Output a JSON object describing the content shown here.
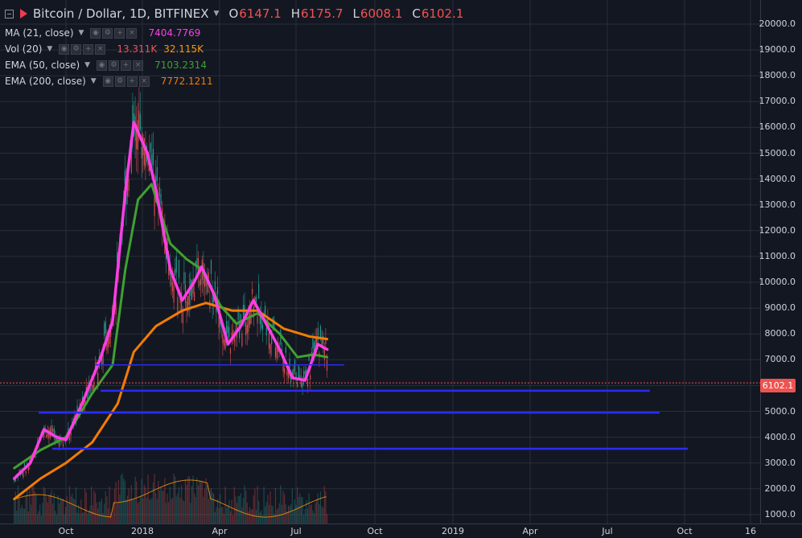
{
  "legend": {
    "symbol_title": "Bitcoin / Dollar, 1D, BITFINEX",
    "ohlc": [
      {
        "label": "O",
        "value": "6147.1"
      },
      {
        "label": "H",
        "value": "6175.7"
      },
      {
        "label": "L",
        "value": "6008.1"
      },
      {
        "label": "C",
        "value": "6102.1"
      }
    ],
    "indicators": [
      {
        "name": "MA (21, close)",
        "value": "7404.7769",
        "color": "#ff3ee6"
      },
      {
        "name": "Vol (20)",
        "value": "13.311K",
        "value2": "32.115K",
        "color": "#ef5350",
        "color2": "#ff9800"
      },
      {
        "name": "EMA (50, close)",
        "value": "7103.2314",
        "color": "#3fa130"
      },
      {
        "name": "EMA (200, close)",
        "value": "7772.1211",
        "color": "#f57c00"
      }
    ]
  },
  "price_axis": {
    "labels": [
      "20000.0",
      "19000.0",
      "18000.0",
      "17000.0",
      "16000.0",
      "15000.0",
      "14000.0",
      "13000.0",
      "12000.0",
      "11000.0",
      "10000.0",
      "9000.0",
      "8000.0",
      "7000.0",
      "6000.0",
      "5000.0",
      "4000.0",
      "3000.0",
      "2000.0",
      "1000.0"
    ],
    "last_price": "6102.1"
  },
  "time_axis": {
    "labels": [
      "Oct",
      "2018",
      "Apr",
      "Jul",
      "Oct",
      "2019",
      "Apr",
      "Jul",
      "Oct",
      "16"
    ]
  },
  "colors": {
    "background": "#131722",
    "grid": "#2a2e39",
    "candle_up": "#26a69a",
    "candle_down": "#ef5350",
    "ma21": "#ff3ee6",
    "ema50": "#3fa130",
    "ema200": "#f57c00",
    "support_lines": "#2a2cf0",
    "last_price": "#ef5350"
  },
  "chart_data": {
    "type": "line",
    "title": "Bitcoin / Dollar, 1D, BITFINEX",
    "ylim": [
      800,
      20700
    ],
    "y_scale": "linear",
    "grid": true,
    "support_levels": [
      6800,
      5800,
      4950,
      3550
    ],
    "series": [
      {
        "name": "MA (21, close)",
        "points": [
          [
            "2017-08-01",
            2400
          ],
          [
            "2017-08-20",
            3000
          ],
          [
            "2017-09-05",
            4300
          ],
          [
            "2017-09-20",
            4000
          ],
          [
            "2017-10-01",
            3900
          ],
          [
            "2017-10-20",
            5300
          ],
          [
            "2017-11-10",
            7000
          ],
          [
            "2017-11-25",
            8500
          ],
          [
            "2017-12-10",
            13500
          ],
          [
            "2017-12-20",
            16200
          ],
          [
            "2018-01-05",
            15000
          ],
          [
            "2018-01-15",
            13600
          ],
          [
            "2018-02-01",
            10500
          ],
          [
            "2018-02-15",
            9300
          ],
          [
            "2018-03-01",
            10000
          ],
          [
            "2018-03-10",
            10600
          ],
          [
            "2018-03-25",
            9500
          ],
          [
            "2018-04-10",
            7600
          ],
          [
            "2018-04-25",
            8300
          ],
          [
            "2018-05-10",
            9300
          ],
          [
            "2018-05-25",
            8400
          ],
          [
            "2018-06-10",
            7400
          ],
          [
            "2018-06-25",
            6300
          ],
          [
            "2018-07-10",
            6200
          ],
          [
            "2018-07-25",
            7600
          ],
          [
            "2018-08-05",
            7400
          ]
        ]
      },
      {
        "name": "EMA (50, close)",
        "points": [
          [
            "2017-08-01",
            2800
          ],
          [
            "2017-09-01",
            3500
          ],
          [
            "2017-10-01",
            4000
          ],
          [
            "2017-11-01",
            5700
          ],
          [
            "2017-11-25",
            6800
          ],
          [
            "2017-12-10",
            10500
          ],
          [
            "2017-12-25",
            13200
          ],
          [
            "2018-01-10",
            13800
          ],
          [
            "2018-02-01",
            11500
          ],
          [
            "2018-02-20",
            10900
          ],
          [
            "2018-03-10",
            10500
          ],
          [
            "2018-04-01",
            9100
          ],
          [
            "2018-04-20",
            8400
          ],
          [
            "2018-05-15",
            8800
          ],
          [
            "2018-06-10",
            8000
          ],
          [
            "2018-07-01",
            7100
          ],
          [
            "2018-07-20",
            7200
          ],
          [
            "2018-08-05",
            7100
          ]
        ]
      },
      {
        "name": "EMA (200, close)",
        "points": [
          [
            "2017-08-01",
            1600
          ],
          [
            "2017-09-01",
            2400
          ],
          [
            "2017-10-01",
            3000
          ],
          [
            "2017-11-01",
            3800
          ],
          [
            "2017-12-01",
            5300
          ],
          [
            "2017-12-20",
            7300
          ],
          [
            "2018-01-15",
            8300
          ],
          [
            "2018-02-15",
            8900
          ],
          [
            "2018-03-15",
            9200
          ],
          [
            "2018-04-15",
            8900
          ],
          [
            "2018-05-15",
            8900
          ],
          [
            "2018-06-15",
            8200
          ],
          [
            "2018-07-15",
            7900
          ],
          [
            "2018-08-05",
            7800
          ]
        ]
      }
    ],
    "volume": {
      "name": "Vol (20)",
      "last": "13.311K",
      "ma": "32.115K"
    }
  }
}
